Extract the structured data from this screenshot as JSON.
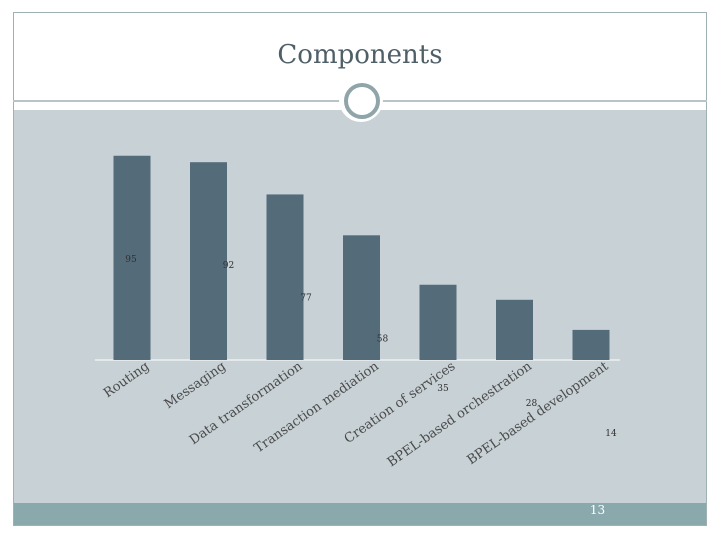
{
  "slide": {
    "title": "Components",
    "page_number": "13"
  },
  "colors": {
    "bar": "#546b7a",
    "chart_background": "#c7d1d6",
    "footer_bar": "#8aa9ad",
    "title_text": "#4f5f68"
  },
  "chart_data": {
    "type": "bar",
    "categories": [
      "Routing",
      "Messaging",
      "Data transformation",
      "Transaction mediation",
      "Creation of services",
      "BPEL-based orchestration",
      "BPEL-based development"
    ],
    "values": [
      95,
      92,
      77,
      58,
      35,
      28,
      14
    ],
    "title": "",
    "xlabel": "",
    "ylabel": "",
    "ylim": [
      0,
      100
    ],
    "grid": false,
    "legend": "none"
  }
}
